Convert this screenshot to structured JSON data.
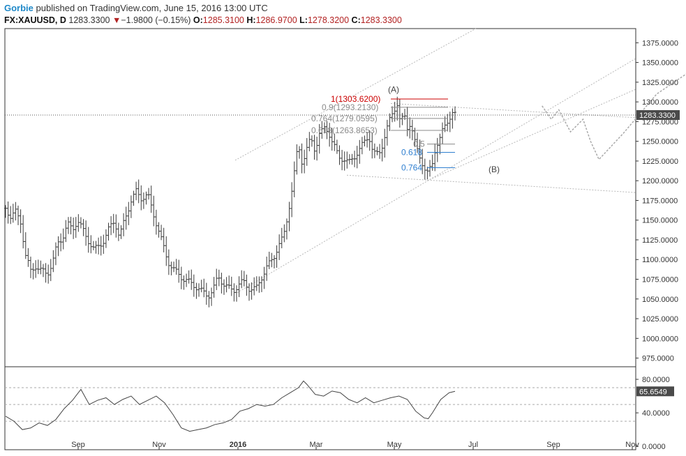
{
  "header": {
    "author": "Gorbie",
    "published": "published on TradingView.com, June 15, 2016 13:00 UTC",
    "symbol": "FX:XAUUSD, D",
    "last": "1283.3300",
    "change": "−1.9800 (−0.15%)",
    "open_label": "O:",
    "open": "1285.3100",
    "high_label": "H:",
    "high": "1286.9700",
    "low_label": "L:",
    "low": "1278.3200",
    "close_label": "C:",
    "close": "1283.3300"
  },
  "colors": {
    "candle": "#3a3a3a",
    "fib_red": "#cc0000",
    "fib_gray": "#8a8a8a",
    "fib_blue": "#2f7fd0",
    "line": "#b8b8b8",
    "label_bg": "#4a4a4a"
  },
  "chart_data": [
    {
      "type": "ohlc",
      "symbol": "FX:XAUUSD",
      "timeframe": "D",
      "x_ticks": [
        "Sep",
        "Nov",
        "2016",
        "Mar",
        "May",
        "Jul",
        "Sep",
        "Nov"
      ],
      "y_ticks": [
        "1375.0000",
        "1350.0000",
        "1325.0000",
        "1300.0000",
        "1275.0000",
        "1250.0000",
        "1225.0000",
        "1200.0000",
        "1175.0000",
        "1150.0000",
        "1125.0000",
        "1100.0000",
        "1075.0000",
        "1050.0000",
        "1025.0000",
        "1000.0000",
        "975.0000"
      ],
      "ylim": [
        964,
        1393
      ],
      "last_price_label": "1283.3300",
      "last_price": 1283.33,
      "price_path": [
        [
          0,
          1165
        ],
        [
          6,
          1155
        ],
        [
          12,
          1160
        ],
        [
          18,
          1148
        ],
        [
          24,
          1105
        ],
        [
          30,
          1085
        ],
        [
          36,
          1092
        ],
        [
          42,
          1086
        ],
        [
          50,
          1082
        ],
        [
          56,
          1096
        ],
        [
          62,
          1120
        ],
        [
          68,
          1128
        ],
        [
          74,
          1145
        ],
        [
          80,
          1138
        ],
        [
          86,
          1150
        ],
        [
          92,
          1138
        ],
        [
          100,
          1122
        ],
        [
          106,
          1112
        ],
        [
          112,
          1118
        ],
        [
          118,
          1125
        ],
        [
          124,
          1140
        ],
        [
          130,
          1150
        ],
        [
          136,
          1128
        ],
        [
          142,
          1150
        ],
        [
          150,
          1175
        ],
        [
          156,
          1186
        ],
        [
          162,
          1178
        ],
        [
          170,
          1182
        ],
        [
          176,
          1160
        ],
        [
          182,
          1140
        ],
        [
          188,
          1118
        ],
        [
          194,
          1098
        ],
        [
          200,
          1088
        ],
        [
          206,
          1082
        ],
        [
          212,
          1076
        ],
        [
          218,
          1072
        ],
        [
          224,
          1068
        ],
        [
          230,
          1064
        ],
        [
          236,
          1058
        ],
        [
          242,
          1054
        ],
        [
          248,
          1062
        ],
        [
          254,
          1078
        ],
        [
          260,
          1070
        ],
        [
          266,
          1064
        ],
        [
          272,
          1060
        ],
        [
          278,
          1068
        ],
        [
          284,
          1072
        ],
        [
          290,
          1064
        ],
        [
          296,
          1062
        ],
        [
          300,
          1064
        ],
        [
          306,
          1078
        ],
        [
          312,
          1090
        ],
        [
          316,
          1096
        ],
        [
          320,
          1102
        ],
        [
          326,
          1118
        ],
        [
          332,
          1128
        ],
        [
          336,
          1150
        ],
        [
          340,
          1175
        ],
        [
          344,
          1200
        ],
        [
          347,
          1228
        ],
        [
          350,
          1245
        ],
        [
          354,
          1225
        ],
        [
          358,
          1232
        ],
        [
          362,
          1248
        ],
        [
          366,
          1250
        ],
        [
          370,
          1238
        ],
        [
          374,
          1258
        ],
        [
          378,
          1262
        ],
        [
          382,
          1268
        ],
        [
          386,
          1262
        ],
        [
          390,
          1250
        ],
        [
          394,
          1240
        ],
        [
          398,
          1230
        ],
        [
          404,
          1228
        ],
        [
          410,
          1222
        ],
        [
          416,
          1230
        ],
        [
          422,
          1238
        ],
        [
          428,
          1248
        ],
        [
          434,
          1258
        ],
        [
          438,
          1240
        ],
        [
          442,
          1232
        ],
        [
          448,
          1238
        ],
        [
          454,
          1260
        ],
        [
          460,
          1280
        ],
        [
          464,
          1290
        ],
        [
          468,
          1298
        ],
        [
          472,
          1270
        ],
        [
          476,
          1285
        ],
        [
          480,
          1268
        ],
        [
          484,
          1274
        ],
        [
          488,
          1252
        ],
        [
          492,
          1238
        ],
        [
          496,
          1228
        ],
        [
          500,
          1218
        ],
        [
          503,
          1208
        ],
        [
          506,
          1212
        ],
        [
          510,
          1222
        ],
        [
          514,
          1245
        ],
        [
          518,
          1250
        ],
        [
          522,
          1262
        ],
        [
          526,
          1272
        ],
        [
          530,
          1280
        ],
        [
          534,
          1286
        ],
        [
          537,
          1283
        ]
      ],
      "annotations": {
        "wave_a": "(A)",
        "wave_b": "(B)",
        "fib_retracements": [
          {
            "label": "1(1303.6200)",
            "level": 1303.62
          },
          {
            "label": "0.9(1293.2130)",
            "level": 1293.213
          },
          {
            "label": "0.764(1279.0595)",
            "level": 1279.0595
          },
          {
            "label": "0.618(1263.8653)",
            "level": 1263.8653
          }
        ],
        "fib_extensions": [
          {
            "label": "0.5",
            "level": 1246.5
          },
          {
            "label": "0.618",
            "level": 1236
          },
          {
            "label": "0.764",
            "level": 1216.5
          }
        ],
        "projection_path": [
          [
            1295,
            641
          ],
          [
            1278,
            652
          ],
          [
            1290,
            661
          ],
          [
            1262,
            675
          ],
          [
            1278,
            690
          ],
          [
            1250,
            699
          ],
          [
            1227,
            709
          ],
          [
            1260,
            738
          ],
          [
            1310,
            778
          ],
          [
            1393,
            893
          ]
        ]
      }
    },
    {
      "type": "line",
      "indicator": "RSI",
      "y_ticks": [
        "80.0000",
        "40.0000",
        "0.0000"
      ],
      "ylim": [
        -4,
        95
      ],
      "reference_levels": [
        70,
        50,
        30
      ],
      "last_value_label": "65.6549",
      "values": [
        [
          0,
          36
        ],
        [
          10,
          30
        ],
        [
          20,
          20
        ],
        [
          30,
          22
        ],
        [
          40,
          28
        ],
        [
          50,
          25
        ],
        [
          60,
          32
        ],
        [
          70,
          45
        ],
        [
          80,
          55
        ],
        [
          90,
          68
        ],
        [
          100,
          50
        ],
        [
          110,
          55
        ],
        [
          120,
          58
        ],
        [
          130,
          50
        ],
        [
          140,
          56
        ],
        [
          150,
          60
        ],
        [
          160,
          50
        ],
        [
          170,
          55
        ],
        [
          180,
          60
        ],
        [
          190,
          52
        ],
        [
          200,
          38
        ],
        [
          210,
          22
        ],
        [
          220,
          18
        ],
        [
          230,
          20
        ],
        [
          240,
          22
        ],
        [
          250,
          26
        ],
        [
          260,
          28
        ],
        [
          270,
          32
        ],
        [
          280,
          42
        ],
        [
          290,
          45
        ],
        [
          300,
          50
        ],
        [
          310,
          48
        ],
        [
          320,
          50
        ],
        [
          330,
          58
        ],
        [
          340,
          64
        ],
        [
          350,
          70
        ],
        [
          356,
          78
        ],
        [
          360,
          74
        ],
        [
          370,
          62
        ],
        [
          380,
          60
        ],
        [
          390,
          66
        ],
        [
          400,
          64
        ],
        [
          410,
          56
        ],
        [
          420,
          52
        ],
        [
          430,
          58
        ],
        [
          440,
          52
        ],
        [
          450,
          55
        ],
        [
          460,
          58
        ],
        [
          470,
          60
        ],
        [
          480,
          56
        ],
        [
          490,
          42
        ],
        [
          500,
          34
        ],
        [
          505,
          33
        ],
        [
          510,
          40
        ],
        [
          520,
          56
        ],
        [
          530,
          64
        ],
        [
          537,
          65.65
        ]
      ]
    }
  ]
}
